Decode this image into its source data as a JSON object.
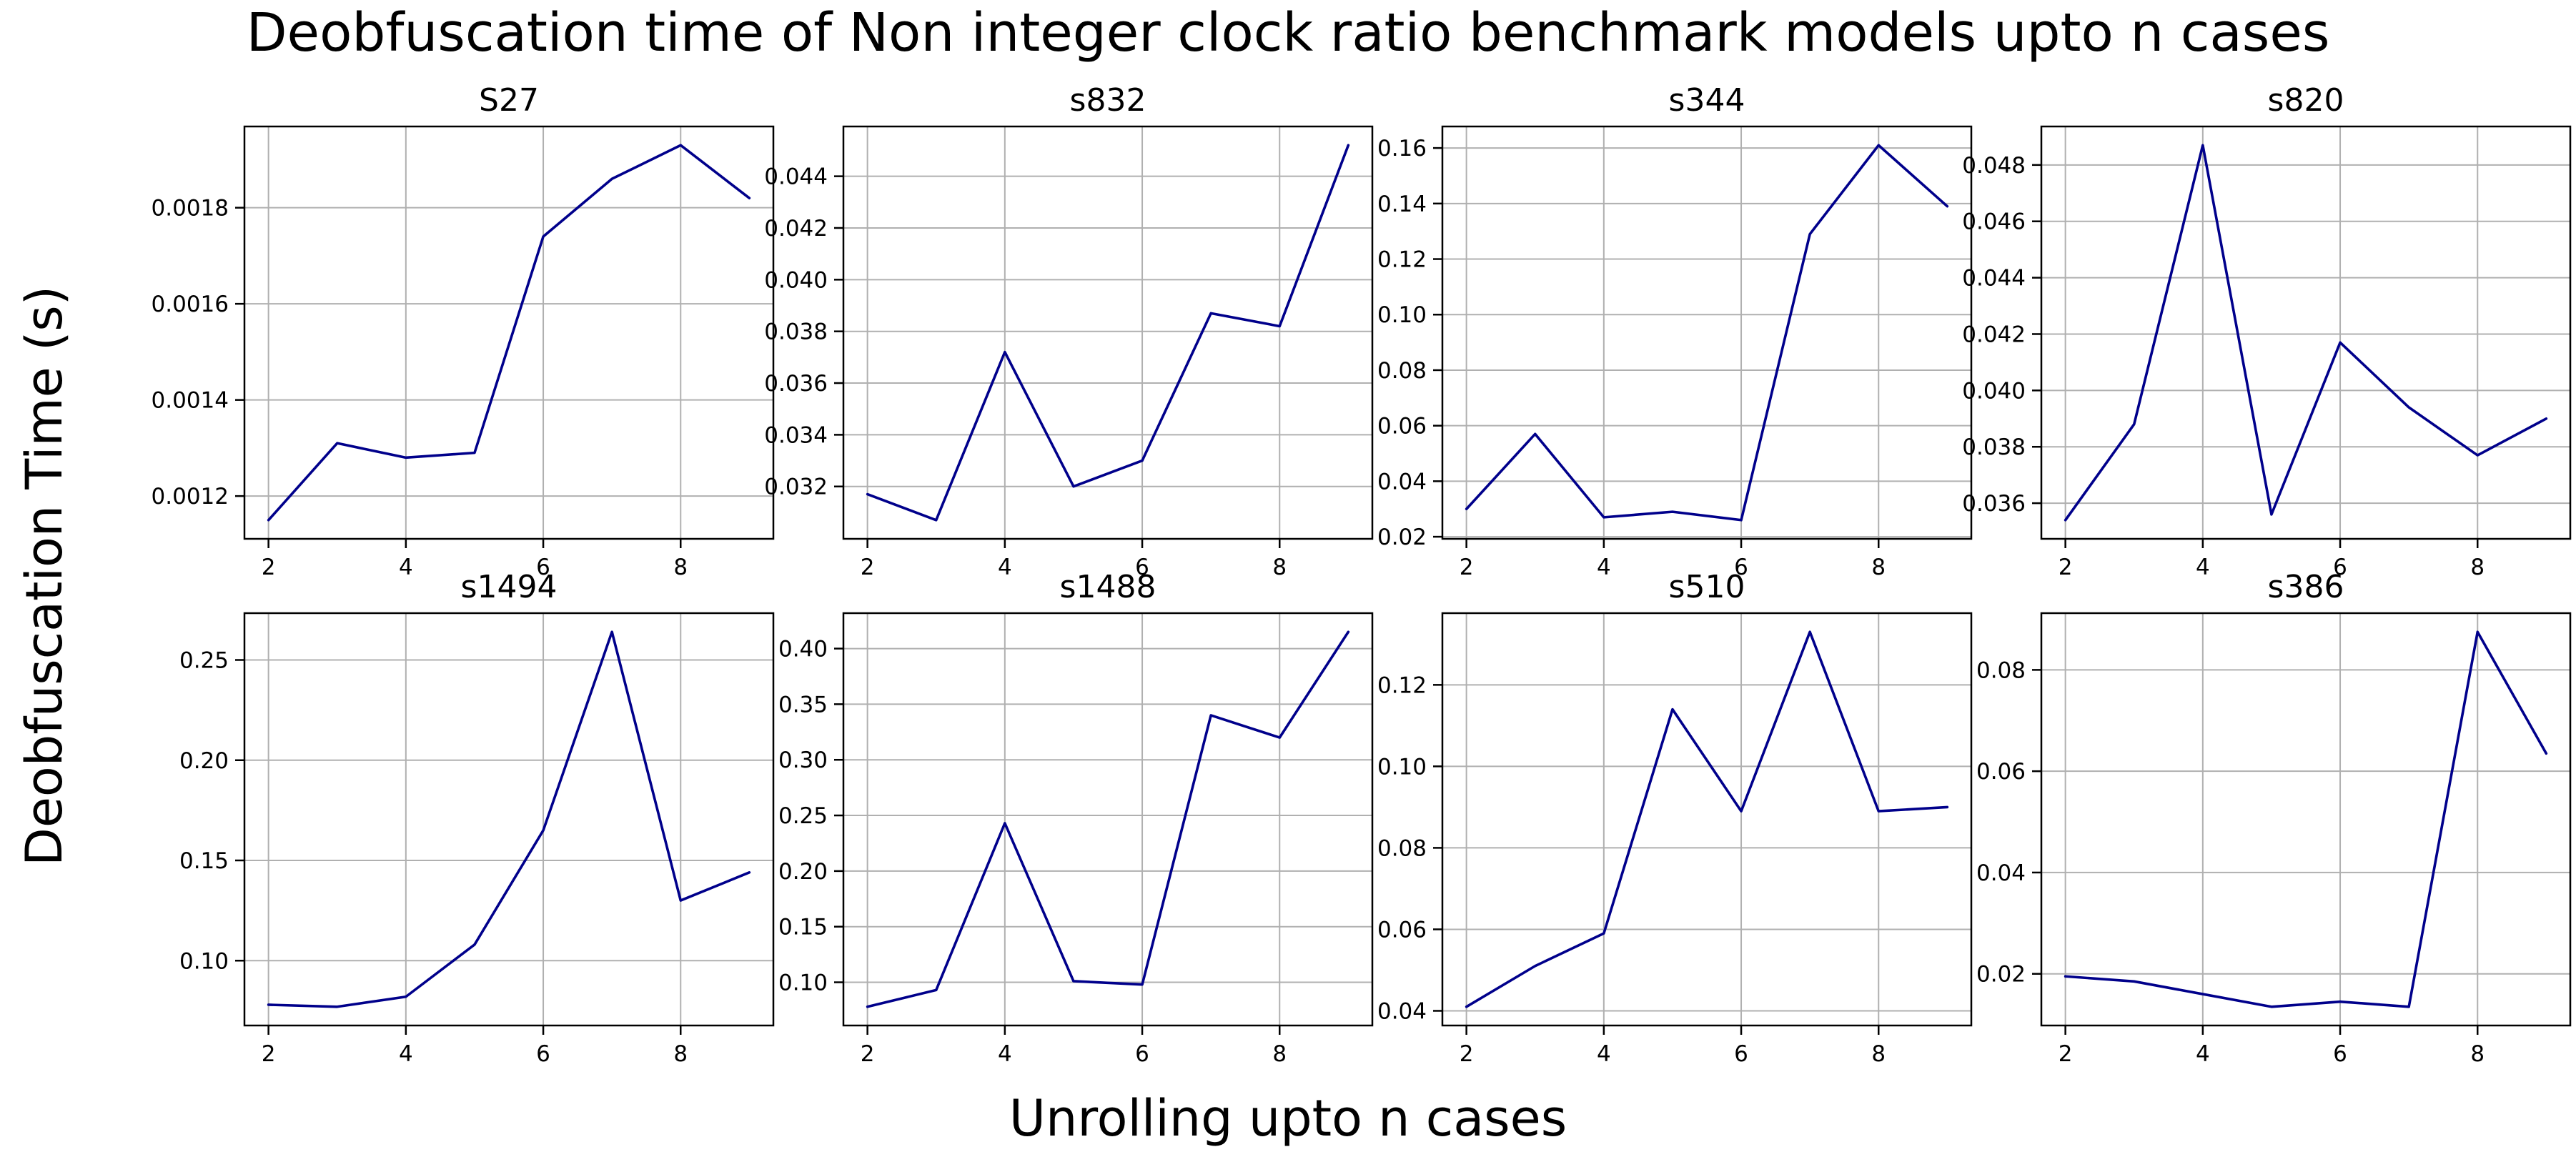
{
  "figure": {
    "title": "Deobfuscation time of Non integer clock ratio benchmark models upto n cases",
    "ylabel": "Deobfuscation Time (s)",
    "xlabel": "Unrolling upto n cases",
    "line_color": "#00008b",
    "grid_color": "#b0b0b0",
    "spine_color": "#000000",
    "background_color": "#ffffff"
  },
  "chart_data": [
    {
      "type": "line",
      "title": "S27",
      "x": [
        2,
        3,
        4,
        5,
        6,
        7,
        8,
        9
      ],
      "values": [
        0.00115,
        0.00131,
        0.00128,
        0.00129,
        0.00174,
        0.00186,
        0.00193,
        0.00182
      ],
      "xticks": [
        2,
        4,
        6,
        8
      ],
      "xtick_labels": [
        "2",
        "4",
        "6",
        "8"
      ],
      "ytick_values": [
        0.0012,
        0.0014,
        0.0016,
        0.0018
      ],
      "ytick_labels": [
        "0.0012",
        "0.0014",
        "0.0016",
        "0.0018"
      ],
      "xlim": [
        1.65,
        9.35
      ],
      "ylim": [
        0.001111,
        0.001969
      ],
      "grid": true,
      "legend": "none"
    },
    {
      "type": "line",
      "title": "s832",
      "x": [
        2,
        3,
        4,
        5,
        6,
        7,
        8,
        9
      ],
      "values": [
        0.0317,
        0.0307,
        0.0372,
        0.032,
        0.033,
        0.0387,
        0.0382,
        0.0452
      ],
      "xticks": [
        2,
        4,
        6,
        8
      ],
      "xtick_labels": [
        "2",
        "4",
        "6",
        "8"
      ],
      "ytick_values": [
        0.032,
        0.034,
        0.036,
        0.038,
        0.04,
        0.042,
        0.044
      ],
      "ytick_labels": [
        "0.032",
        "0.034",
        "0.036",
        "0.038",
        "0.040",
        "0.042",
        "0.044"
      ],
      "xlim": [
        1.65,
        9.35
      ],
      "ylim": [
        0.029975,
        0.045925
      ],
      "grid": true,
      "legend": "none"
    },
    {
      "type": "line",
      "title": "s344",
      "x": [
        2,
        3,
        4,
        5,
        6,
        7,
        8,
        9
      ],
      "values": [
        0.03,
        0.057,
        0.027,
        0.029,
        0.026,
        0.129,
        0.161,
        0.139
      ],
      "xticks": [
        2,
        4,
        6,
        8
      ],
      "xtick_labels": [
        "2",
        "4",
        "6",
        "8"
      ],
      "ytick_values": [
        0.02,
        0.04,
        0.06,
        0.08,
        0.1,
        0.12,
        0.14,
        0.16
      ],
      "ytick_labels": [
        "0.02",
        "0.04",
        "0.06",
        "0.08",
        "0.10",
        "0.12",
        "0.14",
        "0.16"
      ],
      "xlim": [
        1.65,
        9.35
      ],
      "ylim": [
        0.01925,
        0.16775
      ],
      "grid": true,
      "legend": "none"
    },
    {
      "type": "line",
      "title": "s820",
      "x": [
        2,
        3,
        4,
        5,
        6,
        7,
        8,
        9
      ],
      "values": [
        0.0354,
        0.0388,
        0.0487,
        0.0356,
        0.0417,
        0.0394,
        0.0377,
        0.039
      ],
      "xticks": [
        2,
        4,
        6,
        8
      ],
      "xtick_labels": [
        "2",
        "4",
        "6",
        "8"
      ],
      "ytick_values": [
        0.036,
        0.038,
        0.04,
        0.042,
        0.044,
        0.046,
        0.048
      ],
      "ytick_labels": [
        "0.036",
        "0.038",
        "0.040",
        "0.042",
        "0.044",
        "0.046",
        "0.048"
      ],
      "xlim": [
        1.65,
        9.35
      ],
      "ylim": [
        0.034735,
        0.049365
      ],
      "grid": true,
      "legend": "none"
    },
    {
      "type": "line",
      "title": "s1494",
      "x": [
        2,
        3,
        4,
        5,
        6,
        7,
        8,
        9
      ],
      "values": [
        0.078,
        0.077,
        0.082,
        0.108,
        0.165,
        0.264,
        0.13,
        0.144
      ],
      "xticks": [
        2,
        4,
        6,
        8
      ],
      "xtick_labels": [
        "2",
        "4",
        "6",
        "8"
      ],
      "ytick_values": [
        0.1,
        0.15,
        0.2,
        0.25
      ],
      "ytick_labels": [
        "0.10",
        "0.15",
        "0.20",
        "0.25"
      ],
      "xlim": [
        1.65,
        9.35
      ],
      "ylim": [
        0.06765,
        0.27335
      ],
      "grid": true,
      "legend": "none"
    },
    {
      "type": "line",
      "title": "s1488",
      "x": [
        2,
        3,
        4,
        5,
        6,
        7,
        8,
        9
      ],
      "values": [
        0.078,
        0.093,
        0.243,
        0.101,
        0.098,
        0.34,
        0.32,
        0.415
      ],
      "xticks": [
        2,
        4,
        6,
        8
      ],
      "xtick_labels": [
        "2",
        "4",
        "6",
        "8"
      ],
      "ytick_values": [
        0.1,
        0.15,
        0.2,
        0.25,
        0.3,
        0.35,
        0.4
      ],
      "ytick_labels": [
        "0.10",
        "0.15",
        "0.20",
        "0.25",
        "0.30",
        "0.35",
        "0.40"
      ],
      "xlim": [
        1.65,
        9.35
      ],
      "ylim": [
        0.06115,
        0.43185
      ],
      "grid": true,
      "legend": "none"
    },
    {
      "type": "line",
      "title": "s510",
      "x": [
        2,
        3,
        4,
        5,
        6,
        7,
        8,
        9
      ],
      "values": [
        0.041,
        0.051,
        0.059,
        0.114,
        0.089,
        0.133,
        0.089,
        0.09
      ],
      "xticks": [
        2,
        4,
        6,
        8
      ],
      "xtick_labels": [
        "2",
        "4",
        "6",
        "8"
      ],
      "ytick_values": [
        0.04,
        0.06,
        0.08,
        0.1,
        0.12
      ],
      "ytick_labels": [
        "0.04",
        "0.06",
        "0.08",
        "0.10",
        "0.12"
      ],
      "xlim": [
        1.65,
        9.35
      ],
      "ylim": [
        0.0364,
        0.1376
      ],
      "grid": true,
      "legend": "none"
    },
    {
      "type": "line",
      "title": "s386",
      "x": [
        2,
        3,
        4,
        5,
        6,
        7,
        8,
        9
      ],
      "values": [
        0.0195,
        0.0185,
        0.016,
        0.0135,
        0.0145,
        0.0135,
        0.0875,
        0.0635
      ],
      "xticks": [
        2,
        4,
        6,
        8
      ],
      "xtick_labels": [
        "2",
        "4",
        "6",
        "8"
      ],
      "ytick_values": [
        0.02,
        0.04,
        0.06,
        0.08
      ],
      "ytick_labels": [
        "0.02",
        "0.04",
        "0.06",
        "0.08"
      ],
      "xlim": [
        1.65,
        9.35
      ],
      "ylim": [
        0.0098,
        0.0912
      ],
      "grid": true,
      "legend": "none"
    }
  ]
}
